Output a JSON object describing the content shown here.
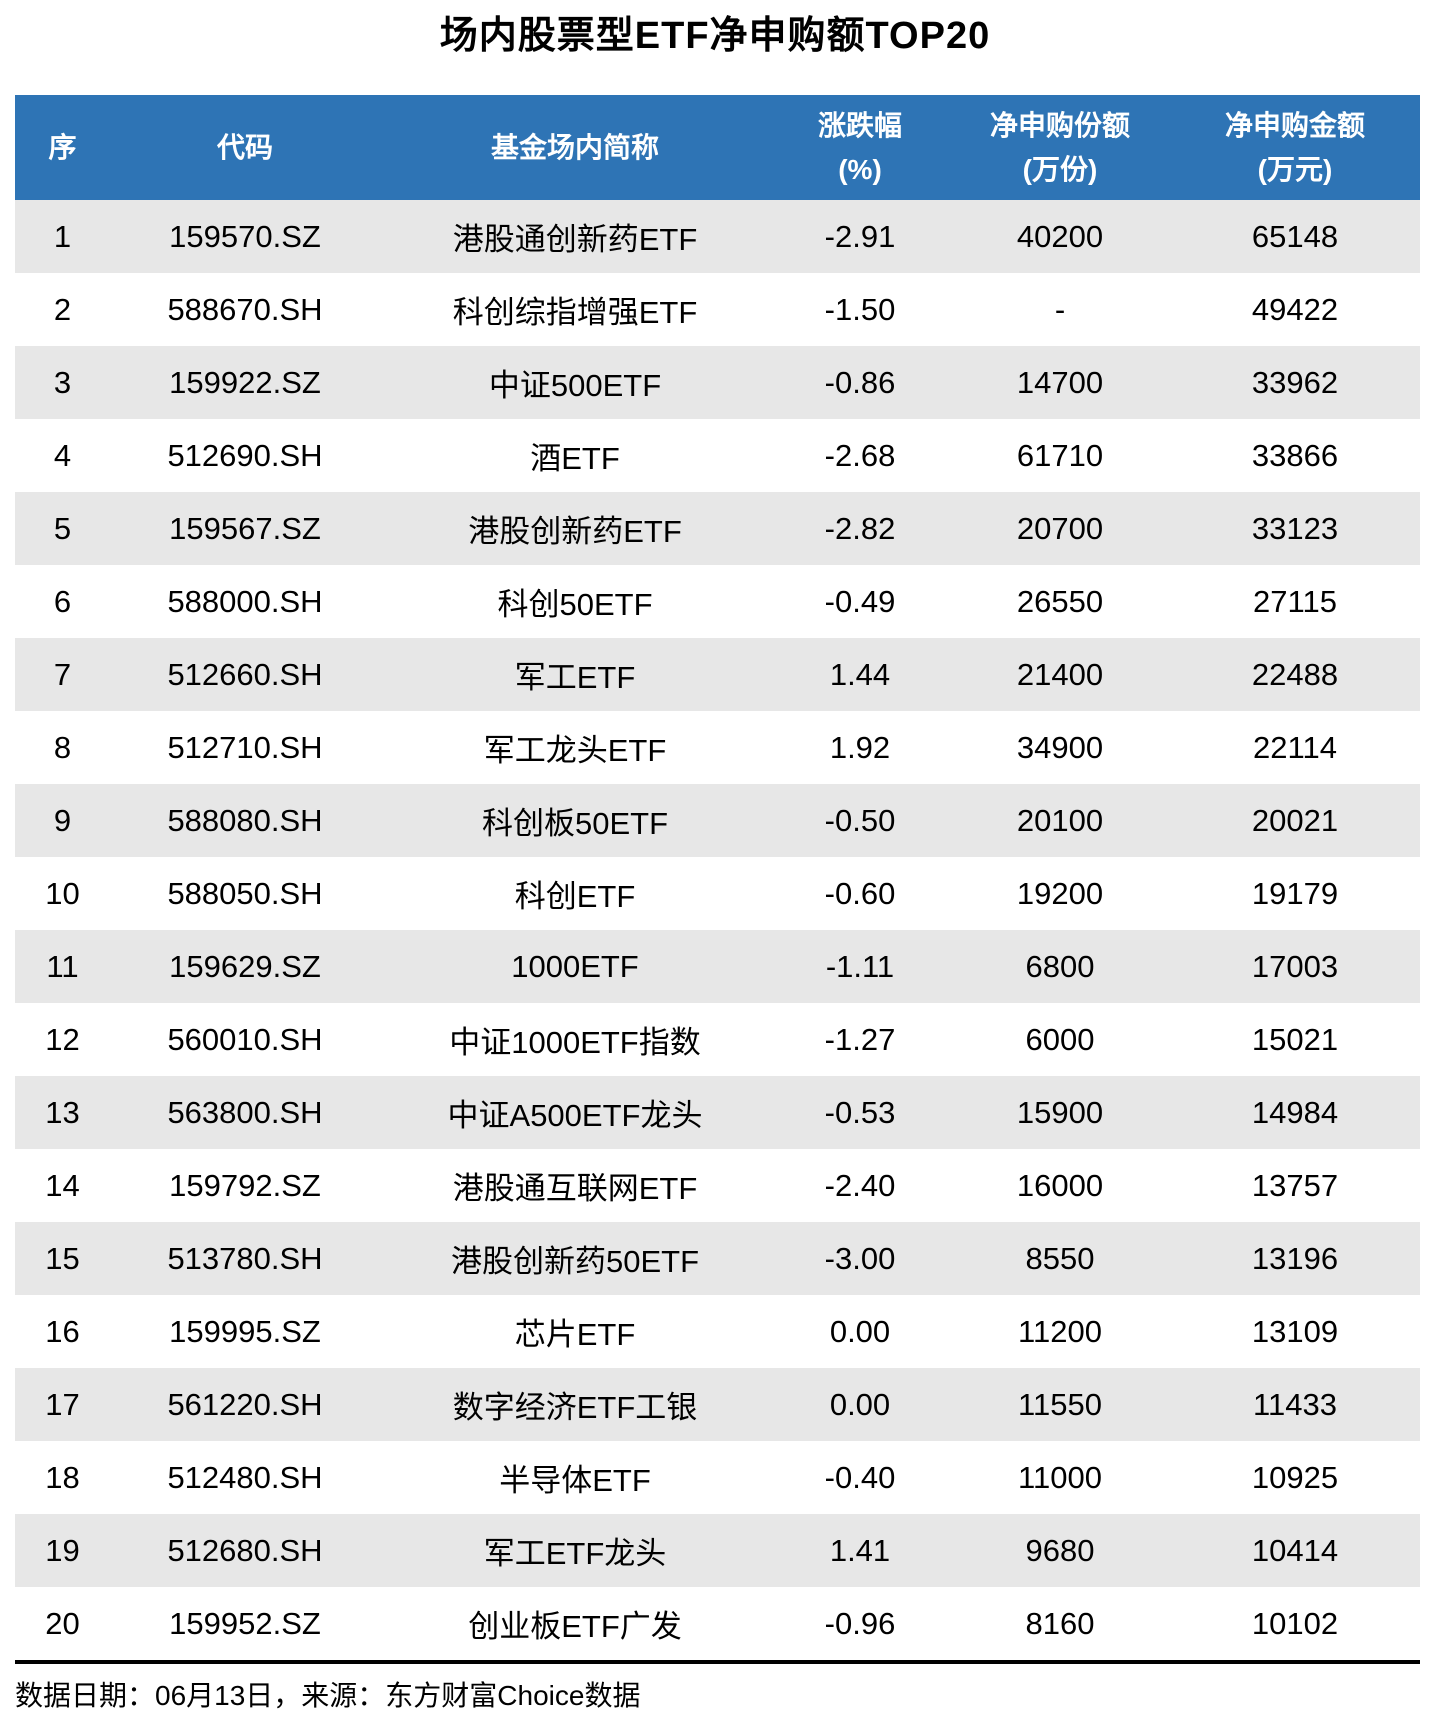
{
  "title": "场内股票型ETF净申购额TOP20",
  "footer": {
    "note": "数据日期：06月13日，来源：东方财富Choice数据"
  },
  "colors": {
    "header_bg": "#2E74B5",
    "header_text": "#FFFFFF",
    "row_stripe": "#E7E7E7",
    "row_plain": "#FFFFFF",
    "body_text": "#000000"
  },
  "chart_data": {
    "type": "table",
    "title": "场内股票型ETF净申购额TOP20",
    "legend_position": "none",
    "grid": "row-stripes",
    "columns": [
      {
        "label": "序",
        "sub": ""
      },
      {
        "label": "代码",
        "sub": ""
      },
      {
        "label": "基金场内简称",
        "sub": ""
      },
      {
        "label": "涨跌幅",
        "sub": "(%)"
      },
      {
        "label": "净申购份额",
        "sub": "(万份)"
      },
      {
        "label": "净申购金额",
        "sub": "(万元)"
      }
    ],
    "rows": [
      [
        "1",
        "159570.SZ",
        "港股通创新药ETF",
        "-2.91",
        "40200",
        "65148"
      ],
      [
        "2",
        "588670.SH",
        "科创综指增强ETF",
        "-1.50",
        "-",
        "49422"
      ],
      [
        "3",
        "159922.SZ",
        "中证500ETF",
        "-0.86",
        "14700",
        "33962"
      ],
      [
        "4",
        "512690.SH",
        "酒ETF",
        "-2.68",
        "61710",
        "33866"
      ],
      [
        "5",
        "159567.SZ",
        "港股创新药ETF",
        "-2.82",
        "20700",
        "33123"
      ],
      [
        "6",
        "588000.SH",
        "科创50ETF",
        "-0.49",
        "26550",
        "27115"
      ],
      [
        "7",
        "512660.SH",
        "军工ETF",
        "1.44",
        "21400",
        "22488"
      ],
      [
        "8",
        "512710.SH",
        "军工龙头ETF",
        "1.92",
        "34900",
        "22114"
      ],
      [
        "9",
        "588080.SH",
        "科创板50ETF",
        "-0.50",
        "20100",
        "20021"
      ],
      [
        "10",
        "588050.SH",
        "科创ETF",
        "-0.60",
        "19200",
        "19179"
      ],
      [
        "11",
        "159629.SZ",
        "1000ETF",
        "-1.11",
        "6800",
        "17003"
      ],
      [
        "12",
        "560010.SH",
        "中证1000ETF指数",
        "-1.27",
        "6000",
        "15021"
      ],
      [
        "13",
        "563800.SH",
        "中证A500ETF龙头",
        "-0.53",
        "15900",
        "14984"
      ],
      [
        "14",
        "159792.SZ",
        "港股通互联网ETF",
        "-2.40",
        "16000",
        "13757"
      ],
      [
        "15",
        "513780.SH",
        "港股创新药50ETF",
        "-3.00",
        "8550",
        "13196"
      ],
      [
        "16",
        "159995.SZ",
        "芯片ETF",
        "0.00",
        "11200",
        "13109"
      ],
      [
        "17",
        "561220.SH",
        "数字经济ETF工银",
        "0.00",
        "11550",
        "11433"
      ],
      [
        "18",
        "512480.SH",
        "半导体ETF",
        "-0.40",
        "11000",
        "10925"
      ],
      [
        "19",
        "512680.SH",
        "军工ETF龙头",
        "1.41",
        "9680",
        "10414"
      ],
      [
        "20",
        "159952.SZ",
        "创业板ETF广发",
        "-0.96",
        "8160",
        "10102"
      ]
    ],
    "source_note": "数据日期：06月13日，来源：东方财富Choice数据"
  }
}
